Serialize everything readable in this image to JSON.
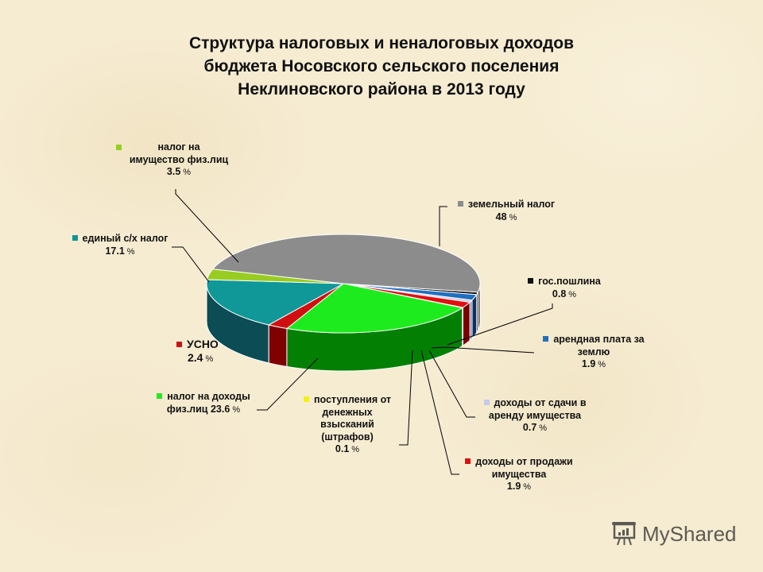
{
  "title": {
    "line1": "Структура налоговых и неналоговых доходов",
    "line2": "бюджета Носовского сельского поселения",
    "line3": "Неклиновского района в 2013 году"
  },
  "labels": {
    "zemelny": {
      "text": "земельный налог",
      "pct": "48",
      "unit": "%"
    },
    "gosposhlina": {
      "text": "гос.пошлина",
      "pct": "0.8",
      "unit": "%"
    },
    "arenda_zemli": {
      "line1": "арендная плата за",
      "line2": "землю",
      "pct": "1.9",
      "unit": "%"
    },
    "sdacha": {
      "line1": "доходы от сдачи в",
      "line2": "аренду имущества",
      "pct": "0.7",
      "unit": "%"
    },
    "prodazha": {
      "line1": "доходы от продажи",
      "line2": "имущества",
      "pct": "1.9",
      "unit": "%"
    },
    "shtrafy": {
      "line1": "поступления от",
      "line2": "денежных",
      "line3": "взысканий",
      "line4": "(штрафов)",
      "pct": "0.1",
      "unit": "%"
    },
    "ndfl": {
      "line1": "налог на доходы",
      "line2": "физ.лиц",
      "pct": "23.6",
      "unit": "%"
    },
    "usno": {
      "text": "УСНО",
      "pct": "2.4",
      "unit": "%"
    },
    "eshn": {
      "text": "единый с/х налог",
      "pct": "17.1",
      "unit": "%"
    },
    "imushchestvo": {
      "line1": "налог на",
      "line2": "имущество физ.лиц",
      "pct": "3.5",
      "unit": "%"
    }
  },
  "watermark": {
    "text": "MyShared"
  },
  "chart_data": {
    "type": "pie",
    "style": "3d-exploded-none",
    "title": "Структура налоговых и неналоговых доходов бюджета Носовского сельского поселения Неклиновского района в 2013 году",
    "unit": "%",
    "slices": [
      {
        "label": "гос.пошлина",
        "value": 0.8,
        "color": "#111111",
        "side": "#000000"
      },
      {
        "label": "арендная плата за землю",
        "value": 1.9,
        "color": "#1F6FC0",
        "side": "#0A2F66"
      },
      {
        "label": "доходы от сдачи в аренду имущества",
        "value": 0.7,
        "color": "#C8C8E8",
        "side": "#7878A0"
      },
      {
        "label": "доходы от продажи имущества",
        "value": 1.9,
        "color": "#E01010",
        "side": "#7A0000"
      },
      {
        "label": "поступления от денежных взысканий (штрафов)",
        "value": 0.1,
        "color": "#F0F020",
        "side": "#909000"
      },
      {
        "label": "налог на доходы физ.лиц",
        "value": 23.6,
        "color": "#1EEB1E",
        "side": "#038003"
      },
      {
        "label": "УСНО",
        "value": 2.4,
        "color": "#D01010",
        "side": "#800000"
      },
      {
        "label": "единый с/х налог",
        "value": 17.1,
        "color": "#109898",
        "side": "#0B4C55"
      },
      {
        "label": "налог на имущество физ.лиц",
        "value": 3.5,
        "color": "#99CC22",
        "side": "#557711"
      },
      {
        "label": "земельный налог",
        "value": 48.0,
        "color": "#8C8C8C",
        "side": "#444444"
      }
    ],
    "legend": "data-labels with leader lines"
  }
}
